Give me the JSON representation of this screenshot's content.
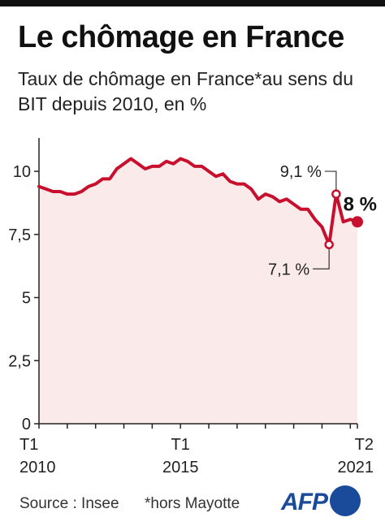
{
  "header": {
    "title": "Le chômage en France",
    "subtitle": "Taux de chômage en France*au sens du BIT depuis 2010, en %"
  },
  "colors": {
    "line": "#c8102e",
    "fill": "#fbeaea",
    "text": "#111111",
    "logo": "#1a4a9a"
  },
  "chart_data": {
    "type": "line",
    "title": "Le chômage en France",
    "subtitle": "Taux de chômage en France*au sens du BIT depuis 2010, en %",
    "xlabel": "",
    "ylabel": "",
    "ylim": [
      0,
      11
    ],
    "yticks": [
      0,
      2.5,
      5,
      7.5,
      10
    ],
    "ytick_labels": [
      "0",
      "2,5",
      "5",
      "7,5",
      "10"
    ],
    "xticks": [
      {
        "index": 0,
        "line1": "T1",
        "line2": "2010"
      },
      {
        "index": 20,
        "line1": "T1",
        "line2": "2015"
      },
      {
        "index": 45,
        "line1": "T2",
        "line2": "2021"
      }
    ],
    "grid": false,
    "area_fill": true,
    "x_quarters": [
      "2010-T1",
      "2010-T2",
      "2010-T3",
      "2010-T4",
      "2011-T1",
      "2011-T2",
      "2011-T3",
      "2011-T4",
      "2012-T1",
      "2012-T2",
      "2012-T3",
      "2012-T4",
      "2013-T1",
      "2013-T2",
      "2013-T3",
      "2013-T4",
      "2014-T1",
      "2014-T2",
      "2014-T3",
      "2014-T4",
      "2015-T1",
      "2015-T2",
      "2015-T3",
      "2015-T4",
      "2016-T1",
      "2016-T2",
      "2016-T3",
      "2016-T4",
      "2017-T1",
      "2017-T2",
      "2017-T3",
      "2017-T4",
      "2018-T1",
      "2018-T2",
      "2018-T3",
      "2018-T4",
      "2019-T1",
      "2019-T2",
      "2019-T3",
      "2019-T4",
      "2020-T1",
      "2020-T2",
      "2020-T3",
      "2020-T4",
      "2021-T1",
      "2021-T2"
    ],
    "values": [
      9.4,
      9.3,
      9.2,
      9.2,
      9.1,
      9.1,
      9.2,
      9.4,
      9.5,
      9.7,
      9.7,
      10.1,
      10.3,
      10.5,
      10.3,
      10.1,
      10.2,
      10.2,
      10.4,
      10.3,
      10.5,
      10.4,
      10.2,
      10.2,
      10.0,
      9.8,
      9.9,
      9.6,
      9.5,
      9.5,
      9.3,
      8.9,
      9.1,
      9.0,
      8.8,
      8.9,
      8.7,
      8.5,
      8.5,
      8.1,
      7.8,
      7.1,
      9.1,
      8.0,
      8.1,
      8.0
    ],
    "annotations": [
      {
        "index": 41,
        "label": "7,1 %"
      },
      {
        "index": 42,
        "label": "9,1 %"
      }
    ],
    "last_value_label": "8 %"
  },
  "footer": {
    "source": "Source : Insee",
    "note": "*hors Mayotte",
    "logo_text": "AFP"
  }
}
